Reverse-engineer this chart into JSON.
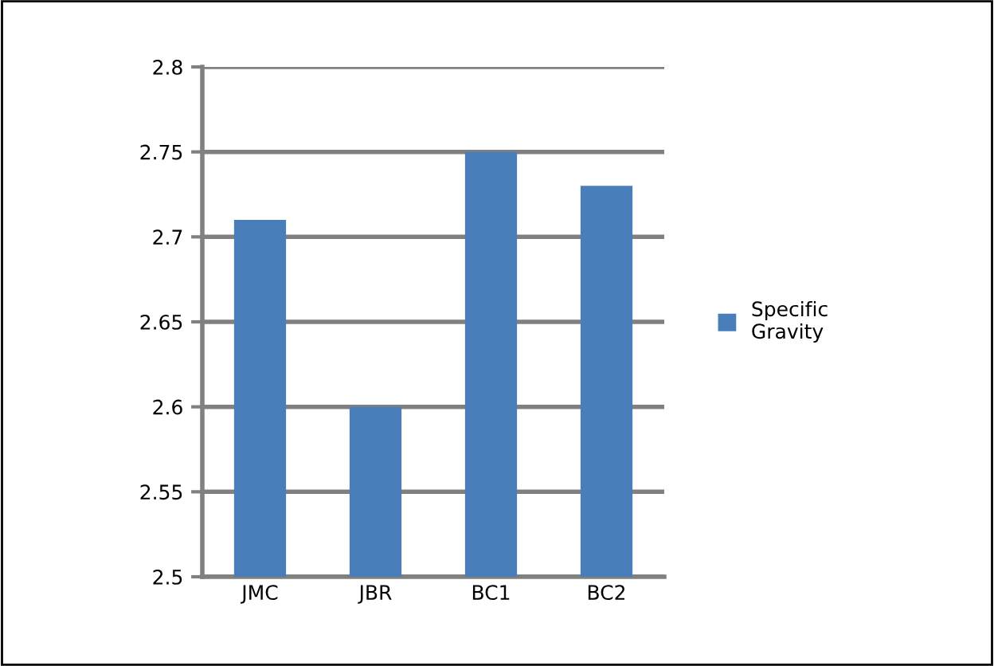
{
  "chart_data": {
    "type": "bar",
    "categories": [
      "JMC",
      "JBR",
      "BC1",
      "BC2"
    ],
    "series": [
      {
        "name": "Specific Gravity",
        "color": "#4a7ebb",
        "values": [
          2.71,
          2.6,
          2.75,
          2.73
        ]
      }
    ],
    "ylim": [
      2.5,
      2.8
    ],
    "yticks": [
      2.5,
      2.55,
      2.6,
      2.65,
      2.7,
      2.75,
      2.8
    ],
    "grid": "y",
    "legend": "right"
  }
}
